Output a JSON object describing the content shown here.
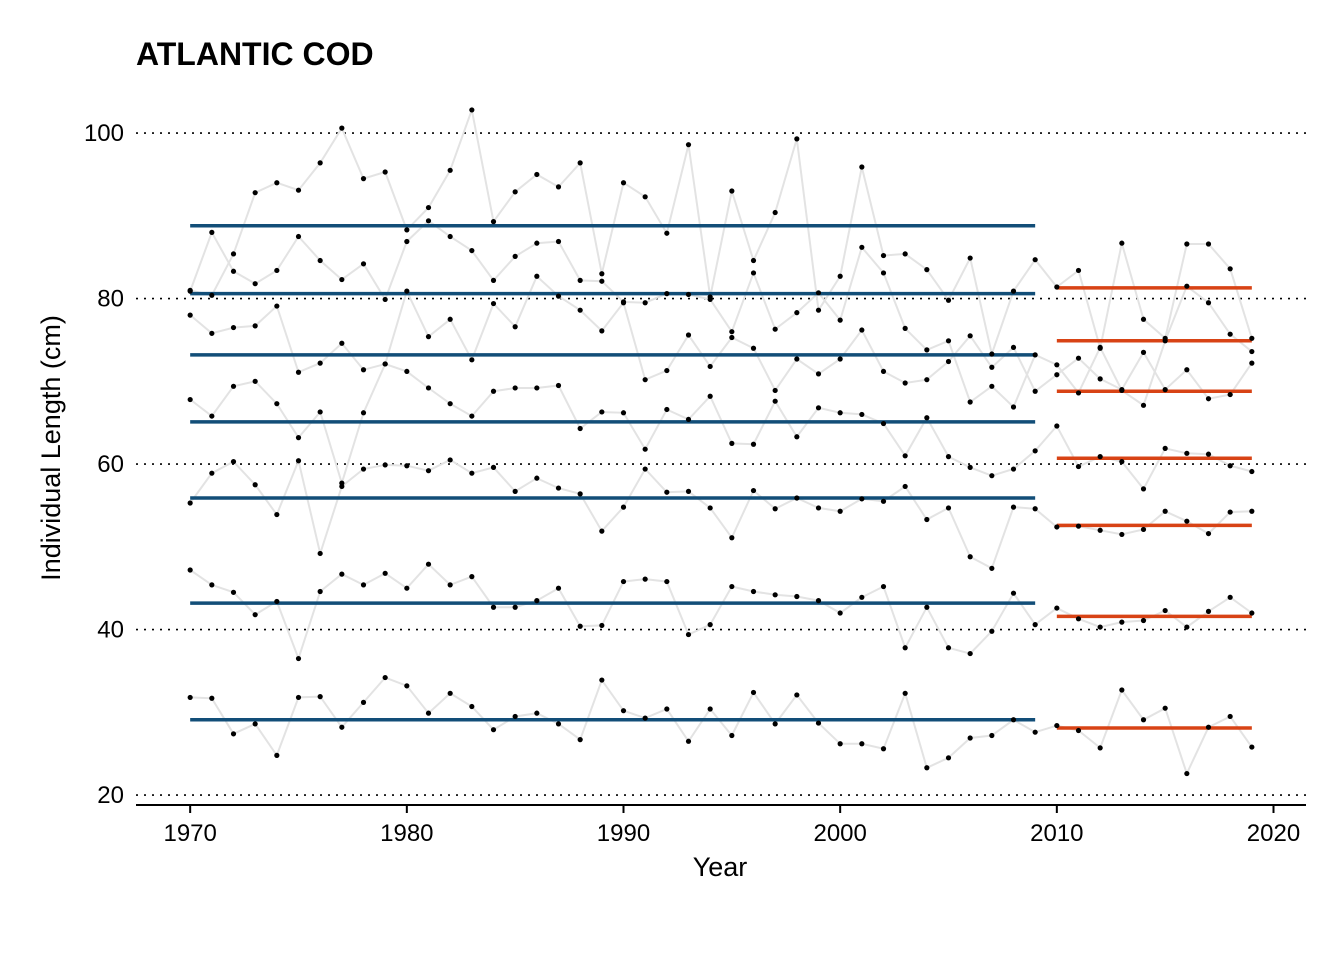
{
  "chart_data": {
    "type": "line",
    "title": "ATLANTIC COD",
    "xlabel": "Year",
    "ylabel": "Individual Length (cm)",
    "xlim": [
      1967.5,
      2021.5
    ],
    "ylim": [
      18.8,
      104
    ],
    "xticks": [
      1970,
      1980,
      1990,
      2000,
      2010,
      2020
    ],
    "yticks": [
      20,
      40,
      60,
      80,
      100
    ],
    "grid": "horizontal dotted",
    "colors": {
      "points": "#000000",
      "connecting_lines": "#e3e3e3",
      "period_1_mean": "#124e78",
      "period_2_mean": "#d84315"
    },
    "x": [
      1970,
      1971,
      1972,
      1973,
      1974,
      1975,
      1976,
      1977,
      1978,
      1979,
      1980,
      1981,
      1982,
      1983,
      1984,
      1985,
      1986,
      1987,
      1988,
      1989,
      1990,
      1991,
      1992,
      1993,
      1994,
      1995,
      1996,
      1997,
      1998,
      1999,
      2000,
      2001,
      2002,
      2003,
      2004,
      2005,
      2006,
      2007,
      2008,
      2009,
      2010,
      2011,
      2012,
      2013,
      2014,
      2015,
      2016,
      2017,
      2018,
      2019
    ],
    "series": [
      {
        "values": [
          31.8,
          31.7,
          27.4,
          28.6,
          24.8,
          31.8,
          31.9,
          28.2,
          31.2,
          34.2,
          33.2,
          29.9,
          32.3,
          30.7,
          27.9,
          29.5,
          29.9,
          28.6,
          26.7,
          33.9,
          30.2,
          29.3,
          30.4,
          26.5,
          30.4,
          27.2,
          32.4,
          28.6,
          32.1,
          28.7,
          26.2,
          26.2,
          25.6,
          32.3,
          23.3,
          24.5,
          26.9,
          27.2,
          29.1,
          27.6,
          28.4,
          27.8,
          25.7,
          32.7,
          29.1,
          30.5,
          22.6,
          28.2,
          29.5,
          25.8
        ]
      },
      {
        "values": [
          47.2,
          45.4,
          44.5,
          41.8,
          43.4,
          36.5,
          44.6,
          46.7,
          45.4,
          46.8,
          45.0,
          47.9,
          45.4,
          46.4,
          42.7,
          42.7,
          43.5,
          45.0,
          40.4,
          40.5,
          45.8,
          46.1,
          45.8,
          39.4,
          40.6,
          45.2,
          44.6,
          44.2,
          44.0,
          43.5,
          42.0,
          43.9,
          45.2,
          37.8,
          42.7,
          37.8,
          37.1,
          39.8,
          44.4,
          40.6,
          42.6,
          41.3,
          40.3,
          40.9,
          41.1,
          42.3,
          40.3,
          42.2,
          43.9,
          42.0
        ]
      },
      {
        "values": [
          55.3,
          58.9,
          60.3,
          57.5,
          53.9,
          60.4,
          49.2,
          57.3,
          59.4,
          59.9,
          59.8,
          59.2,
          60.5,
          58.9,
          59.6,
          56.7,
          58.3,
          57.1,
          56.4,
          51.9,
          54.8,
          59.4,
          56.6,
          56.7,
          54.7,
          51.1,
          56.8,
          54.6,
          55.9,
          54.7,
          54.3,
          55.8,
          55.5,
          57.3,
          53.3,
          54.7,
          48.8,
          47.4,
          54.8,
          54.6,
          52.4,
          52.5,
          52.0,
          51.5,
          52.1,
          54.3,
          53.1,
          51.6,
          54.2,
          54.3
        ]
      },
      {
        "values": [
          67.8,
          65.8,
          69.4,
          70.0,
          67.3,
          63.2,
          66.3,
          57.7,
          66.2,
          72.1,
          71.2,
          69.2,
          67.3,
          65.8,
          68.8,
          69.2,
          69.2,
          69.5,
          64.3,
          66.3,
          66.2,
          61.8,
          66.6,
          65.4,
          68.2,
          62.5,
          62.4,
          67.6,
          63.3,
          66.8,
          66.2,
          66.0,
          64.9,
          61.0,
          65.6,
          60.9,
          59.6,
          58.6,
          59.4,
          61.6,
          64.6,
          59.7,
          60.9,
          60.3,
          57.0,
          61.9,
          61.3,
          61.2,
          59.8,
          59.1
        ]
      },
      {
        "values": [
          78.0,
          75.8,
          76.5,
          76.7,
          79.1,
          71.1,
          72.2,
          74.6,
          71.4,
          72.1,
          80.9,
          75.4,
          77.5,
          72.6,
          79.4,
          76.6,
          82.7,
          80.3,
          78.6,
          76.1,
          79.5,
          70.2,
          71.3,
          75.6,
          71.8,
          75.3,
          74.0,
          68.9,
          72.7,
          70.9,
          72.7,
          76.2,
          71.2,
          69.8,
          70.2,
          72.4,
          75.5,
          71.7,
          74.1,
          68.8,
          70.8,
          72.8,
          70.3,
          69.0,
          73.5,
          69.0,
          71.4,
          67.9,
          68.4,
          72.2
        ]
      },
      {
        "values": [
          80.9,
          88.0,
          83.3,
          81.8,
          83.4,
          87.5,
          84.6,
          82.3,
          84.2,
          79.9,
          86.9,
          89.4,
          87.5,
          85.8,
          82.2,
          85.1,
          86.7,
          86.9,
          82.2,
          82.1,
          79.6,
          79.5,
          80.6,
          80.5,
          79.9,
          76.0,
          83.1,
          76.3,
          78.3,
          80.7,
          77.4,
          86.2,
          83.1,
          76.4,
          73.8,
          74.9,
          67.5,
          69.4,
          66.9,
          73.2,
          72.0,
          68.6,
          74.1,
          68.9,
          67.1,
          74.9,
          81.5,
          79.5,
          75.7,
          73.6
        ]
      },
      {
        "values": [
          81.0,
          80.4,
          85.4,
          92.8,
          94.0,
          93.1,
          96.4,
          100.6,
          94.5,
          95.3,
          88.3,
          91.0,
          95.5,
          102.8,
          89.3,
          92.9,
          95.0,
          93.5,
          96.4,
          83.0,
          94.0,
          92.3,
          87.9,
          98.6,
          80.2,
          93.0,
          84.6,
          90.4,
          99.3,
          78.6,
          82.7,
          95.9,
          85.2,
          85.4,
          83.5,
          79.8,
          84.9,
          73.3,
          80.9,
          84.7,
          81.4,
          83.4,
          74.0,
          86.7,
          77.5,
          75.2,
          86.6,
          86.6,
          83.6,
          75.2
        ]
      }
    ],
    "period_means": [
      {
        "x_range": [
          1970,
          2009
        ],
        "values": [
          29.1,
          43.2,
          55.9,
          65.1,
          73.2,
          80.6,
          88.8
        ],
        "color": "#124e78"
      },
      {
        "x_range": [
          2010,
          2019
        ],
        "values": [
          28.1,
          41.6,
          52.6,
          60.7,
          68.8,
          74.9,
          81.3
        ],
        "color": "#d84315"
      }
    ]
  }
}
